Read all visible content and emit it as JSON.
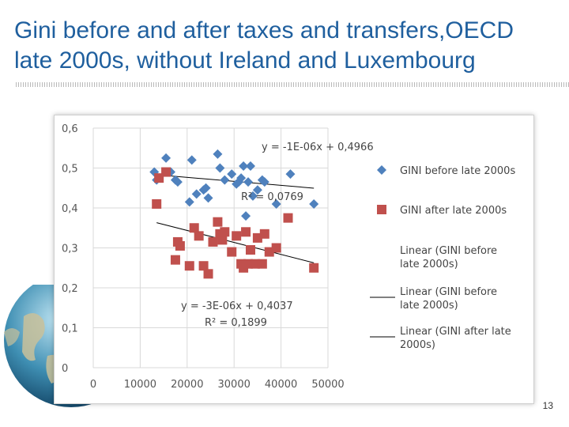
{
  "slide": {
    "title_line1": "Gini before and after taxes and transfers,OECD",
    "title_line2": "late 2000s, without Ireland and Luxembourg",
    "page_number": "13"
  },
  "colors": {
    "title": "#1f5f9e",
    "series_before": "#4f81bd",
    "series_after": "#c0504d",
    "trendline": "#000000",
    "grid": "#d9d9d9"
  },
  "chart_data": {
    "type": "scatter",
    "title": "",
    "xlabel": "",
    "ylabel": "",
    "xlim": [
      0,
      50000
    ],
    "ylim": [
      0,
      0.6
    ],
    "x_ticks": [
      "0",
      "10000",
      "20000",
      "30000",
      "40000",
      "50000"
    ],
    "y_ticks": [
      "0",
      "0,1",
      "0,2",
      "0,3",
      "0,4",
      "0,5",
      "0,6"
    ],
    "grid": true,
    "legend_position": "right",
    "series": [
      {
        "name": "GINI before late 2000s",
        "marker": "diamond",
        "points": [
          [
            13000,
            0.49
          ],
          [
            13500,
            0.47
          ],
          [
            15500,
            0.525
          ],
          [
            16500,
            0.49
          ],
          [
            17500,
            0.47
          ],
          [
            18000,
            0.465
          ],
          [
            20500,
            0.415
          ],
          [
            21000,
            0.52
          ],
          [
            22000,
            0.435
          ],
          [
            23500,
            0.445
          ],
          [
            24000,
            0.45
          ],
          [
            24500,
            0.425
          ],
          [
            26500,
            0.535
          ],
          [
            27000,
            0.5
          ],
          [
            27500,
            0.34
          ],
          [
            28000,
            0.47
          ],
          [
            29500,
            0.485
          ],
          [
            30500,
            0.46
          ],
          [
            31000,
            0.465
          ],
          [
            31500,
            0.475
          ],
          [
            32000,
            0.505
          ],
          [
            32500,
            0.38
          ],
          [
            33000,
            0.465
          ],
          [
            33500,
            0.505
          ],
          [
            34000,
            0.43
          ],
          [
            35000,
            0.445
          ],
          [
            36000,
            0.47
          ],
          [
            36500,
            0.465
          ],
          [
            39000,
            0.41
          ],
          [
            42000,
            0.485
          ],
          [
            47000,
            0.41
          ]
        ]
      },
      {
        "name": "GINI after late 2000s",
        "marker": "square",
        "points": [
          [
            13500,
            0.41
          ],
          [
            14000,
            0.475
          ],
          [
            15500,
            0.49
          ],
          [
            17500,
            0.27
          ],
          [
            18000,
            0.315
          ],
          [
            18500,
            0.305
          ],
          [
            20500,
            0.255
          ],
          [
            21500,
            0.35
          ],
          [
            22500,
            0.33
          ],
          [
            23500,
            0.255
          ],
          [
            24500,
            0.235
          ],
          [
            25500,
            0.315
          ],
          [
            26500,
            0.365
          ],
          [
            27000,
            0.335
          ],
          [
            27500,
            0.32
          ],
          [
            28000,
            0.34
          ],
          [
            29500,
            0.29
          ],
          [
            30500,
            0.33
          ],
          [
            31500,
            0.26
          ],
          [
            32000,
            0.25
          ],
          [
            32500,
            0.34
          ],
          [
            33000,
            0.26
          ],
          [
            33500,
            0.295
          ],
          [
            34500,
            0.26
          ],
          [
            35000,
            0.325
          ],
          [
            36000,
            0.26
          ],
          [
            36500,
            0.335
          ],
          [
            37500,
            0.29
          ],
          [
            39000,
            0.3
          ],
          [
            41500,
            0.375
          ],
          [
            47000,
            0.25
          ]
        ]
      }
    ],
    "trendlines": [
      {
        "name": "Linear (GINI before late 2000s)",
        "slope": -1e-06,
        "intercept": 0.4966,
        "equation": "y = -1E-06x + 0,4966",
        "r2": "R² = 0,0769"
      },
      {
        "name": "Linear (GINI after late 2000s)",
        "slope": -3e-06,
        "intercept": 0.4037,
        "equation": "y = -3E-06x + 0,4037",
        "r2": "R² = 0,1899"
      }
    ],
    "legend": [
      {
        "label_line1": "GINI before late 2000s",
        "label_line2": "",
        "kind": "diamond"
      },
      {
        "label_line1": "GINI after late 2000s",
        "label_line2": "",
        "kind": "square"
      },
      {
        "label_line1": "Linear (GINI before",
        "label_line2": "late 2000s)",
        "kind": "line-thick"
      },
      {
        "label_line1": "Linear (GINI before",
        "label_line2": "late 2000s)",
        "kind": "line"
      },
      {
        "label_line1": "Linear (GINI after late",
        "label_line2": "2000s)",
        "kind": "line"
      }
    ]
  }
}
